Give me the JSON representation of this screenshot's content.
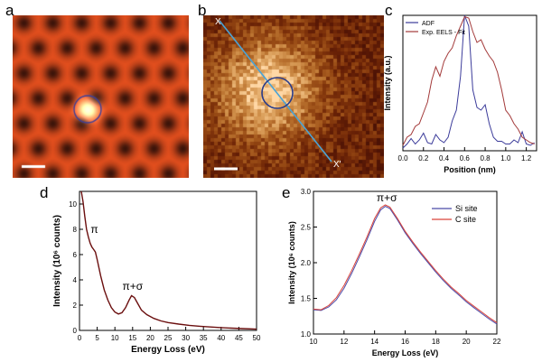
{
  "panel_labels": [
    "a",
    "b",
    "c",
    "d",
    "e"
  ],
  "panel_b": {
    "marker_start": "X",
    "marker_end": "X'"
  },
  "chart_data": [
    {
      "panel": "c",
      "type": "line",
      "xlabel": "Position (nm)",
      "ylabel": "Intensity (a.u.)",
      "xlim": [
        0.0,
        1.3
      ],
      "xticks": [
        "0.0",
        "0.2",
        "0.4",
        "0.6",
        "0.8",
        "1.0",
        "1.2"
      ],
      "legend_placement": "top-left",
      "series": [
        {
          "name": "ADF",
          "color": "#3b3b9a",
          "x": [
            0.0,
            0.04,
            0.08,
            0.12,
            0.16,
            0.2,
            0.24,
            0.28,
            0.32,
            0.36,
            0.4,
            0.44,
            0.48,
            0.52,
            0.56,
            0.6,
            0.64,
            0.68,
            0.72,
            0.76,
            0.8,
            0.84,
            0.88,
            0.92,
            0.96,
            1.0,
            1.04,
            1.08,
            1.12,
            1.16,
            1.2,
            1.24,
            1.28
          ],
          "y": [
            0.02,
            0.05,
            0.09,
            0.05,
            0.08,
            0.13,
            0.06,
            0.05,
            0.12,
            0.08,
            0.06,
            0.1,
            0.22,
            0.3,
            0.55,
            1.0,
            0.92,
            0.45,
            0.32,
            0.3,
            0.34,
            0.2,
            0.1,
            0.07,
            0.07,
            0.05,
            0.05,
            0.08,
            0.06,
            0.14,
            0.05,
            0.04,
            0.06
          ]
        },
        {
          "name": "Exp. EELS - Fit",
          "color": "#a33a3a",
          "x": [
            0.0,
            0.04,
            0.08,
            0.12,
            0.16,
            0.2,
            0.24,
            0.28,
            0.32,
            0.36,
            0.4,
            0.44,
            0.48,
            0.52,
            0.56,
            0.6,
            0.64,
            0.68,
            0.72,
            0.76,
            0.8,
            0.84,
            0.88,
            0.92,
            0.96,
            1.0,
            1.04,
            1.08,
            1.12,
            1.16,
            1.2,
            1.24,
            1.28
          ],
          "y": [
            0.04,
            0.1,
            0.12,
            0.18,
            0.2,
            0.28,
            0.36,
            0.52,
            0.62,
            0.55,
            0.66,
            0.72,
            0.76,
            0.85,
            0.92,
            0.99,
            0.98,
            0.88,
            0.8,
            0.82,
            0.75,
            0.7,
            0.66,
            0.58,
            0.45,
            0.3,
            0.26,
            0.2,
            0.16,
            0.1,
            0.08,
            0.06,
            0.05
          ]
        }
      ]
    },
    {
      "panel": "d",
      "type": "line",
      "xlabel": "Energy Loss (eV)",
      "ylabel": "Intensity (10⁶ counts)",
      "xlim": [
        0,
        50
      ],
      "ylim": [
        0,
        11
      ],
      "xticks": [
        "0",
        "5",
        "10",
        "15",
        "20",
        "25",
        "30",
        "35",
        "40",
        "45",
        "50"
      ],
      "yticks": [
        "0",
        "2",
        "4",
        "6",
        "8",
        "10"
      ],
      "annotations": [
        {
          "text": "π",
          "x": 4.2,
          "y": 7.7
        },
        {
          "text": "π+σ",
          "x": 15,
          "y": 3.2
        }
      ],
      "series": [
        {
          "color": "#6b0f0f",
          "x": [
            0.5,
            1,
            1.5,
            2,
            2.5,
            3,
            3.5,
            4,
            4.5,
            5,
            6,
            7,
            8,
            9,
            10,
            11,
            12,
            13,
            14,
            14.7,
            15.5,
            16.5,
            17.5,
            19,
            21,
            23,
            25,
            28,
            31,
            34,
            37,
            40,
            43,
            46,
            50
          ],
          "y": [
            11,
            10.2,
            9.0,
            8.0,
            7.4,
            6.9,
            6.6,
            6.4,
            6.2,
            5.6,
            4.3,
            3.2,
            2.4,
            1.8,
            1.45,
            1.3,
            1.4,
            1.8,
            2.4,
            2.75,
            2.6,
            2.1,
            1.6,
            1.25,
            0.95,
            0.75,
            0.62,
            0.5,
            0.4,
            0.33,
            0.27,
            0.22,
            0.18,
            0.14,
            0.1
          ]
        }
      ]
    },
    {
      "panel": "e",
      "type": "line",
      "xlabel": "Energy Loss (eV)",
      "ylabel": "Intensity (10⁶ counts)",
      "xlim": [
        10,
        22
      ],
      "ylim": [
        1.0,
        3.0
      ],
      "xticks": [
        "10",
        "12",
        "14",
        "16",
        "18",
        "20",
        "22"
      ],
      "yticks": [
        "1.0",
        "1.5",
        "2.0",
        "2.5",
        "3.0"
      ],
      "legend_placement": "top-right",
      "annotations": [
        {
          "text": "π+σ",
          "x": 14.8,
          "y": 2.86
        }
      ],
      "series": [
        {
          "name": "Si site",
          "color": "#4a4aa8",
          "x": [
            10,
            10.5,
            11,
            11.5,
            12,
            12.5,
            13,
            13.5,
            14,
            14.4,
            14.7,
            15,
            15.5,
            16,
            16.5,
            17,
            17.5,
            18,
            18.5,
            19,
            19.5,
            20,
            20.5,
            21,
            21.5,
            22
          ],
          "y": [
            1.34,
            1.33,
            1.38,
            1.48,
            1.64,
            1.85,
            2.08,
            2.32,
            2.58,
            2.74,
            2.79,
            2.76,
            2.6,
            2.42,
            2.27,
            2.13,
            2.0,
            1.87,
            1.75,
            1.64,
            1.55,
            1.45,
            1.37,
            1.29,
            1.21,
            1.14
          ]
        },
        {
          "name": "C site",
          "color": "#d9433a",
          "x": [
            10,
            10.5,
            11,
            11.5,
            12,
            12.5,
            13,
            13.5,
            14,
            14.4,
            14.7,
            15,
            15.5,
            16,
            16.5,
            17,
            17.5,
            18,
            18.5,
            19,
            19.5,
            20,
            20.5,
            21,
            21.5,
            22
          ],
          "y": [
            1.35,
            1.34,
            1.4,
            1.51,
            1.68,
            1.89,
            2.12,
            2.36,
            2.62,
            2.77,
            2.81,
            2.78,
            2.62,
            2.44,
            2.29,
            2.15,
            2.02,
            1.89,
            1.77,
            1.66,
            1.57,
            1.47,
            1.39,
            1.31,
            1.23,
            1.16
          ]
        }
      ]
    }
  ]
}
